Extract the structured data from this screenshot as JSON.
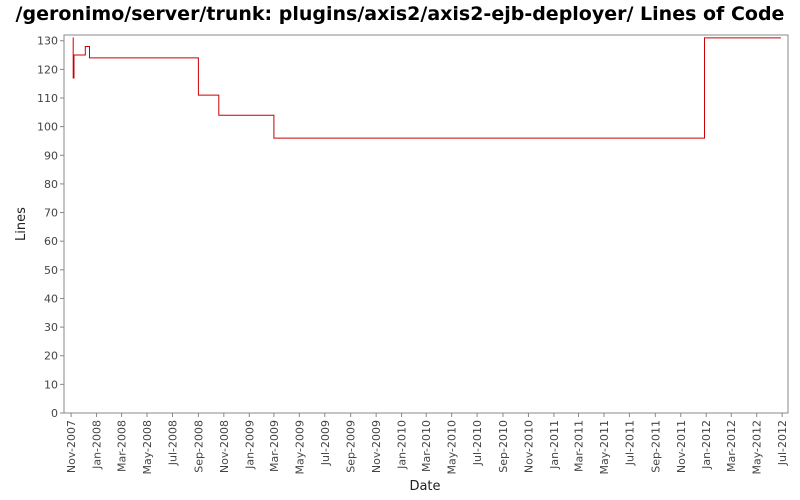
{
  "chart_data": {
    "type": "line",
    "title": "/geronimo/server/trunk: plugins/axis2/axis2-ejb-deployer/ Lines of Code",
    "xlabel": "Date",
    "ylabel": "Lines",
    "ylim": [
      0,
      132
    ],
    "xlim": [
      "2007-10-15",
      "2012-07-15"
    ],
    "grid": false,
    "y_ticks": [
      0,
      10,
      20,
      30,
      40,
      50,
      60,
      70,
      80,
      90,
      100,
      110,
      120,
      130
    ],
    "x_ticks": [
      {
        "label": "Nov-2007",
        "date": "2007-11-01"
      },
      {
        "label": "Jan-2008",
        "date": "2008-01-01"
      },
      {
        "label": "Mar-2008",
        "date": "2008-03-01"
      },
      {
        "label": "May-2008",
        "date": "2008-05-01"
      },
      {
        "label": "Jul-2008",
        "date": "2008-07-01"
      },
      {
        "label": "Sep-2008",
        "date": "2008-09-01"
      },
      {
        "label": "Nov-2008",
        "date": "2008-11-01"
      },
      {
        "label": "Jan-2009",
        "date": "2009-01-01"
      },
      {
        "label": "Mar-2009",
        "date": "2009-03-01"
      },
      {
        "label": "May-2009",
        "date": "2009-05-01"
      },
      {
        "label": "Jul-2009",
        "date": "2009-07-01"
      },
      {
        "label": "Sep-2009",
        "date": "2009-09-01"
      },
      {
        "label": "Nov-2009",
        "date": "2009-11-01"
      },
      {
        "label": "Jan-2010",
        "date": "2010-01-01"
      },
      {
        "label": "Mar-2010",
        "date": "2010-03-01"
      },
      {
        "label": "May-2010",
        "date": "2010-05-01"
      },
      {
        "label": "Jul-2010",
        "date": "2010-07-01"
      },
      {
        "label": "Sep-2010",
        "date": "2010-09-01"
      },
      {
        "label": "Nov-2010",
        "date": "2010-11-01"
      },
      {
        "label": "Jan-2011",
        "date": "2011-01-01"
      },
      {
        "label": "Mar-2011",
        "date": "2011-03-01"
      },
      {
        "label": "May-2011",
        "date": "2011-05-01"
      },
      {
        "label": "Jul-2011",
        "date": "2011-07-01"
      },
      {
        "label": "Sep-2011",
        "date": "2011-09-01"
      },
      {
        "label": "Nov-2011",
        "date": "2011-11-01"
      },
      {
        "label": "Jan-2012",
        "date": "2012-01-01"
      },
      {
        "label": "Mar-2012",
        "date": "2012-03-01"
      },
      {
        "label": "May-2012",
        "date": "2012-05-01"
      },
      {
        "label": "Jul-2012",
        "date": "2012-07-01"
      }
    ],
    "series": [
      {
        "color": "#cc0000",
        "step": true,
        "points": [
          {
            "date": "2007-11-05",
            "value": 131
          },
          {
            "date": "2007-11-06",
            "value": 117
          },
          {
            "date": "2007-11-08",
            "value": 125
          },
          {
            "date": "2007-12-05",
            "value": 128
          },
          {
            "date": "2007-12-15",
            "value": 124
          },
          {
            "date": "2008-09-01",
            "value": 111
          },
          {
            "date": "2008-10-20",
            "value": 104
          },
          {
            "date": "2009-03-01",
            "value": 96
          },
          {
            "date": "2011-12-28",
            "value": 131
          },
          {
            "date": "2012-06-28",
            "value": 131
          }
        ]
      }
    ]
  }
}
